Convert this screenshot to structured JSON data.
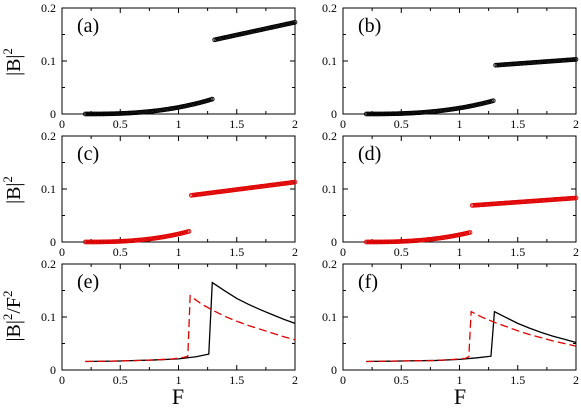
{
  "figure": {
    "xlabel": "F",
    "ylabel_top": "|B|",
    "ylabel_bottom": "|B|",
    "ylabel_sup": "2",
    "ylabel_den": "/F",
    "colors": {
      "black": "#000000",
      "red": "#e00000"
    }
  },
  "chart_data": [
    {
      "type": "scatter",
      "panel_label": "(a)",
      "xlim": [
        0,
        2
      ],
      "ylim": [
        0,
        0.2
      ],
      "xticks": [
        "0",
        "0.5",
        "1",
        "1.5",
        "2"
      ],
      "yticks": [
        "0",
        "0.1",
        "0.2"
      ],
      "series": [
        {
          "color": "black",
          "style": "markers",
          "segments": [
            {
              "x_start": 0.2,
              "x_end": 1.29,
              "y_start": 0.0,
              "y_mid": 0.008,
              "y_end": 0.028,
              "shape": "convex"
            },
            {
              "x_start": 1.31,
              "x_end": 2.0,
              "y_start": 0.14,
              "y_end": 0.173,
              "shape": "linear"
            }
          ]
        }
      ]
    },
    {
      "type": "scatter",
      "panel_label": "(b)",
      "xlim": [
        0,
        2
      ],
      "ylim": [
        0,
        0.2
      ],
      "xticks": [
        "0",
        "0.5",
        "1",
        "1.5",
        "2"
      ],
      "yticks": [
        "0",
        "0.1",
        "0.2"
      ],
      "series": [
        {
          "color": "black",
          "style": "markers",
          "segments": [
            {
              "x_start": 0.2,
              "x_end": 1.29,
              "y_start": 0.0,
              "y_mid": 0.007,
              "y_end": 0.025,
              "shape": "convex"
            },
            {
              "x_start": 1.31,
              "x_end": 2.0,
              "y_start": 0.092,
              "y_end": 0.103,
              "shape": "linear"
            }
          ]
        }
      ]
    },
    {
      "type": "scatter",
      "panel_label": "(c)",
      "xlim": [
        0,
        2
      ],
      "ylim": [
        0,
        0.2
      ],
      "xticks": [
        "0",
        "0.5",
        "1",
        "1.5",
        "2"
      ],
      "yticks": [
        "0",
        "0.1",
        "0.2"
      ],
      "series": [
        {
          "color": "red",
          "style": "markers",
          "segments": [
            {
              "x_start": 0.2,
              "x_end": 1.09,
              "y_start": 0.0,
              "y_mid": 0.006,
              "y_end": 0.02,
              "shape": "convex"
            },
            {
              "x_start": 1.11,
              "x_end": 2.0,
              "y_start": 0.088,
              "y_end": 0.113,
              "shape": "linear"
            }
          ]
        }
      ]
    },
    {
      "type": "scatter",
      "panel_label": "(d)",
      "xlim": [
        0,
        2
      ],
      "ylim": [
        0,
        0.2
      ],
      "xticks": [
        "0",
        "0.5",
        "1",
        "1.5",
        "2"
      ],
      "yticks": [
        "0",
        "0.1",
        "0.2"
      ],
      "series": [
        {
          "color": "red",
          "style": "markers",
          "segments": [
            {
              "x_start": 0.2,
              "x_end": 1.09,
              "y_start": 0.0,
              "y_mid": 0.005,
              "y_end": 0.018,
              "shape": "convex"
            },
            {
              "x_start": 1.11,
              "x_end": 2.0,
              "y_start": 0.069,
              "y_end": 0.083,
              "shape": "linear"
            }
          ]
        }
      ]
    },
    {
      "type": "line",
      "panel_label": "(e)",
      "xlim": [
        0,
        2
      ],
      "ylim": [
        0,
        0.2
      ],
      "xticks": [
        "0",
        "0.5",
        "1",
        "1.5",
        "2"
      ],
      "yticks": [
        "0",
        "0.1",
        "0.2"
      ],
      "series": [
        {
          "color": "black",
          "style": "solid",
          "points": [
            [
              0.2,
              0.016
            ],
            [
              0.5,
              0.017
            ],
            [
              0.8,
              0.019
            ],
            [
              1.0,
              0.021
            ],
            [
              1.15,
              0.025
            ],
            [
              1.26,
              0.03
            ],
            [
              1.29,
              0.165
            ],
            [
              1.4,
              0.149
            ],
            [
              1.5,
              0.135
            ],
            [
              1.6,
              0.124
            ],
            [
              1.7,
              0.114
            ],
            [
              1.8,
              0.105
            ],
            [
              1.9,
              0.096
            ],
            [
              2.0,
              0.088
            ]
          ]
        },
        {
          "color": "red",
          "style": "dashed",
          "points": [
            [
              0.2,
              0.016
            ],
            [
              0.5,
              0.017
            ],
            [
              0.8,
              0.019
            ],
            [
              0.95,
              0.021
            ],
            [
              1.05,
              0.024
            ],
            [
              1.08,
              0.026
            ],
            [
              1.1,
              0.14
            ],
            [
              1.2,
              0.124
            ],
            [
              1.3,
              0.112
            ],
            [
              1.4,
              0.101
            ],
            [
              1.5,
              0.092
            ],
            [
              1.6,
              0.084
            ],
            [
              1.7,
              0.077
            ],
            [
              1.8,
              0.07
            ],
            [
              1.9,
              0.063
            ],
            [
              2.0,
              0.057
            ]
          ]
        }
      ]
    },
    {
      "type": "line",
      "panel_label": "(f)",
      "xlim": [
        0,
        2
      ],
      "ylim": [
        0,
        0.2
      ],
      "xticks": [
        "0",
        "0.5",
        "1",
        "1.5",
        "2"
      ],
      "yticks": [
        "0",
        "0.1",
        "0.2"
      ],
      "series": [
        {
          "color": "black",
          "style": "solid",
          "points": [
            [
              0.2,
              0.016
            ],
            [
              0.5,
              0.017
            ],
            [
              0.8,
              0.018
            ],
            [
              1.0,
              0.02
            ],
            [
              1.15,
              0.023
            ],
            [
              1.27,
              0.026
            ],
            [
              1.3,
              0.11
            ],
            [
              1.4,
              0.099
            ],
            [
              1.5,
              0.088
            ],
            [
              1.6,
              0.079
            ],
            [
              1.7,
              0.071
            ],
            [
              1.8,
              0.064
            ],
            [
              1.9,
              0.058
            ],
            [
              2.0,
              0.052
            ]
          ]
        },
        {
          "color": "red",
          "style": "dashed",
          "points": [
            [
              0.2,
              0.016
            ],
            [
              0.5,
              0.017
            ],
            [
              0.8,
              0.018
            ],
            [
              0.95,
              0.02
            ],
            [
              1.05,
              0.022
            ],
            [
              1.08,
              0.025
            ],
            [
              1.1,
              0.11
            ],
            [
              1.2,
              0.099
            ],
            [
              1.3,
              0.09
            ],
            [
              1.4,
              0.082
            ],
            [
              1.5,
              0.074
            ],
            [
              1.6,
              0.067
            ],
            [
              1.7,
              0.061
            ],
            [
              1.8,
              0.055
            ],
            [
              1.9,
              0.05
            ],
            [
              2.0,
              0.045
            ]
          ]
        }
      ]
    }
  ]
}
